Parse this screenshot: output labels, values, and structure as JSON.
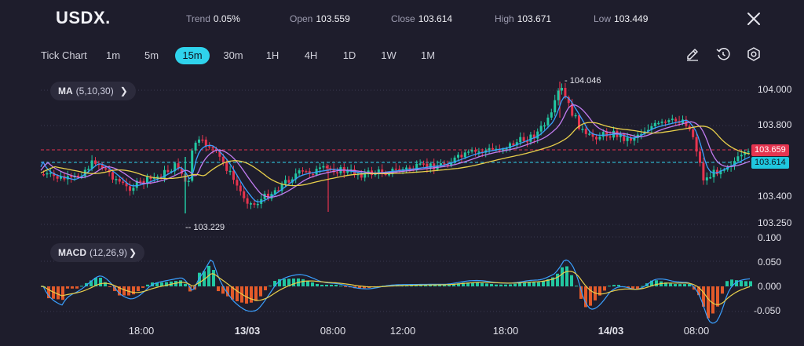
{
  "header": {
    "symbol": "USDX.",
    "trend_label": "Trend",
    "trend_value": "0.05%",
    "open_label": "Open",
    "open_value": "103.559",
    "close_label": "Close",
    "close_value": "103.614",
    "high_label": "High",
    "high_value": "103.671",
    "low_label": "Low",
    "low_value": "103.449"
  },
  "toolbar": {
    "tick_chart_label": "Tick Chart",
    "timeframes": [
      "1m",
      "5m",
      "15m",
      "30m",
      "1H",
      "4H",
      "1D",
      "1W",
      "1M"
    ],
    "active_timeframe": "15m",
    "icons": [
      "draw-icon",
      "reset-icon",
      "settings-icon"
    ]
  },
  "indicators": {
    "ma": {
      "name": "MA",
      "params": "(5,10,30)"
    },
    "macd": {
      "name": "MACD",
      "params": "(12,26,9)"
    }
  },
  "price_axis": [
    "104.000",
    "103.800",
    "103.400",
    "103.250"
  ],
  "macd_axis": [
    "0.100",
    "0.050",
    "0.000",
    "-0.050"
  ],
  "price_tags": {
    "upper": {
      "value": "103.659",
      "color": "#e5344f"
    },
    "lower": {
      "value": "103.614",
      "color": "#1fc7de"
    }
  },
  "annotations": {
    "high": "104.046",
    "low": "103.229"
  },
  "x_axis": [
    {
      "label": "18:00",
      "bold": false
    },
    {
      "label": "13/03",
      "bold": true
    },
    {
      "label": "08:00",
      "bold": false
    },
    {
      "label": "12:00",
      "bold": false
    },
    {
      "label": "18:00",
      "bold": false
    },
    {
      "label": "14/03",
      "bold": true
    },
    {
      "label": "08:00",
      "bold": false
    }
  ],
  "colors": {
    "background": "#1e1d2c",
    "up": "#22c7a1",
    "down": "#e5344f",
    "accent": "#2fd3ec",
    "ma_fast": "#3aa0ff",
    "ma_mid": "#c27cf0",
    "ma_slow": "#e8cf4b",
    "macd_neg": "#e25a2a"
  }
}
